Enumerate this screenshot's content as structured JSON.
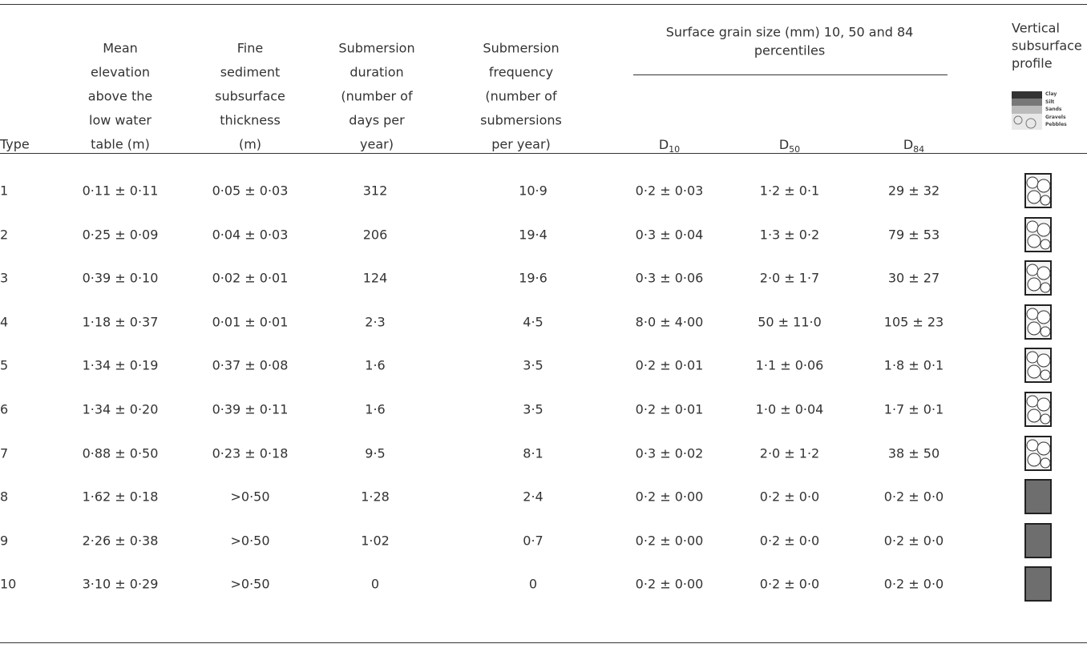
{
  "table": {
    "header": {
      "type": [
        "Type"
      ],
      "elevation": [
        "Mean",
        "elevation",
        "above the",
        "low water",
        "table (m)"
      ],
      "thickness": [
        "Fine",
        "sediment",
        "subsurface",
        "thickness",
        "(m)"
      ],
      "duration": [
        "Submersion",
        "duration",
        "(number of",
        "days per",
        "year)"
      ],
      "frequency": [
        "Submersion",
        "frequency",
        "(number of",
        "submersions",
        "per year)"
      ],
      "grain_group": [
        "Surface grain size (mm) 10, 50 and 84",
        "percentiles"
      ],
      "d10": [
        "D",
        "10"
      ],
      "d50": [
        "D",
        "50"
      ],
      "d84": [
        "D",
        "84"
      ],
      "profile": [
        "Vertical",
        "subsurface",
        "profile"
      ],
      "profile_legend": [
        "Clay",
        "Silt",
        "Sands",
        "Gravels",
        "Pebbles"
      ]
    },
    "rows": [
      [
        "1",
        "0·11 ± 0·11",
        "0·05 ± 0·03",
        "312",
        "10·9",
        "0·2 ± 0·03",
        "1·2 ± 0·1",
        "29 ± 32"
      ],
      [
        "2",
        "0·25 ± 0·09",
        "0·04 ± 0·03",
        "206",
        "19·4",
        "0·3 ± 0·04",
        "1·3 ± 0·2",
        "79 ± 53"
      ],
      [
        "3",
        "0·39 ± 0·10",
        "0·02 ± 0·01",
        "124",
        "19·6",
        "0·3 ± 0·06",
        "2·0 ± 1·7",
        "30 ± 27"
      ],
      [
        "4",
        "1·18 ± 0·37",
        "0·01 ± 0·01",
        "2·3",
        "4·5",
        "8·0 ± 4·00",
        "50 ± 11·0",
        "105 ± 23"
      ],
      [
        "5",
        "1·34 ± 0·19",
        "0·37 ± 0·08",
        "1·6",
        "3·5",
        "0·2 ± 0·01",
        "1·1 ± 0·06",
        "1·8 ± 0·1"
      ],
      [
        "6",
        "1·34 ± 0·20",
        "0·39 ± 0·11",
        "1·6",
        "3·5",
        "0·2 ± 0·01",
        "1·0 ± 0·04",
        "1·7 ± 0·1"
      ],
      [
        "7",
        "0·88 ± 0·50",
        "0·23 ± 0·18",
        "9·5",
        "8·1",
        "0·3 ± 0·02",
        "2·0 ± 1·2",
        "38 ± 50"
      ],
      [
        "8",
        "1·62 ± 0·18",
        ">0·50",
        "1·28",
        "2·4",
        "0·2 ± 0·00",
        "0·2 ± 0·0",
        "0·2 ± 0·0"
      ],
      [
        "9",
        "2·26 ± 0·38",
        ">0·50",
        "1·02",
        "0·7",
        "0·2 ± 0·00",
        "0·2 ± 0·0",
        "0·2 ± 0·0"
      ],
      [
        "10",
        "3·10 ± 0·29",
        ">0·50",
        "0",
        "0",
        "0·2 ± 0·00",
        "0·2 ± 0·0",
        "0·2 ± 0·0"
      ]
    ]
  }
}
